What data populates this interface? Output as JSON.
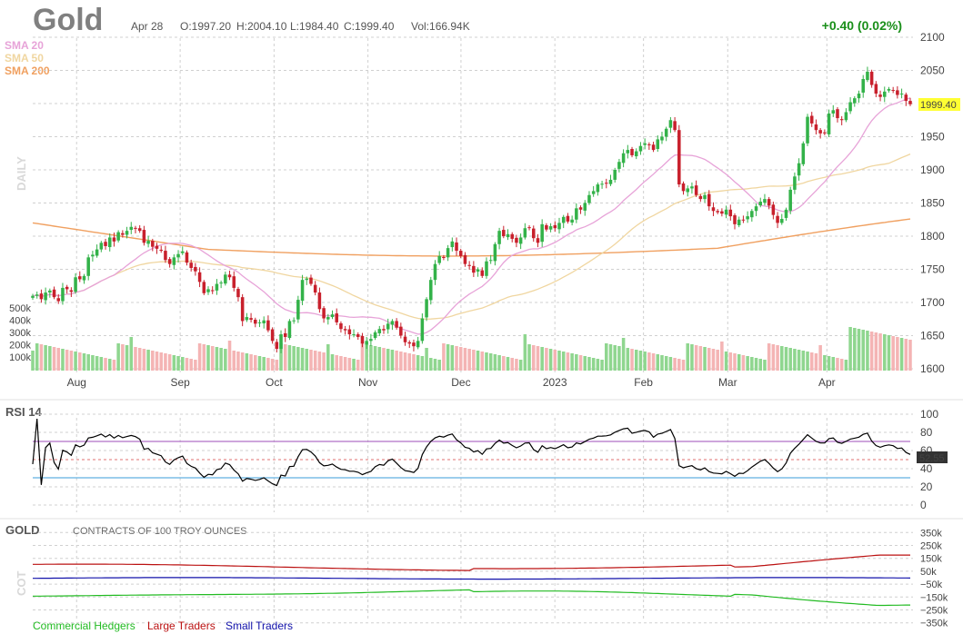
{
  "header": {
    "symbol": "Gold",
    "date": "Apr 28",
    "open": "O:1997.20",
    "high": "H:2004.10",
    "low": "L:1984.40",
    "close": "C:1999.40",
    "volume": "Vol:166.94K",
    "change": "+0.40 (0.02%)",
    "last_price_badge": "1999.40",
    "period_label": "DAILY"
  },
  "sma_legend": [
    {
      "label": "SMA 20",
      "color": "#e7a3d8"
    },
    {
      "label": "SMA 50",
      "color": "#f0d6a0"
    },
    {
      "label": "SMA 200",
      "color": "#f0a060"
    }
  ],
  "colors": {
    "up": "#33b249",
    "down": "#c8202c",
    "vol_up": "#8fd68f",
    "vol_down": "#f4b4b4",
    "badge": "#ffff33",
    "rsi_line": "#000000",
    "rsi_upper": "#b070c8",
    "rsi_lower": "#60b0e0",
    "rsi_mid": "#e07070",
    "commercial": "#22bb22",
    "large": "#bb1111",
    "small": "#1111aa"
  },
  "rsi": {
    "label": "RSI 14",
    "last_value": "52.55",
    "ticks": [
      "0",
      "20",
      "40",
      "60",
      "80",
      "100"
    ]
  },
  "cot": {
    "title": "GOLD",
    "subtitle": "CONTRACTS OF 100 TROY OUNCES",
    "side_label": "COT",
    "ticks": [
      "350k",
      "250k",
      "150k",
      "50k",
      "−50k",
      "−150k",
      "−250k",
      "−350k"
    ],
    "legend": [
      {
        "label": "Commercial Hedgers",
        "color": "#22bb22"
      },
      {
        "label": "Large Traders",
        "color": "#bb1111"
      },
      {
        "label": "Small Traders",
        "color": "#1111aa"
      }
    ]
  },
  "chart_data": {
    "type": "candlestick",
    "x_labels": [
      "Aug",
      "Sep",
      "Oct",
      "Nov",
      "Dec",
      "2023",
      "Feb",
      "Mar",
      "Apr"
    ],
    "price_ticks": [
      "1600",
      "1650",
      "1700",
      "1750",
      "1800",
      "1850",
      "1900",
      "1950",
      "2000",
      "2050",
      "2100"
    ],
    "volume_ticks": [
      "100k",
      "200k",
      "300k",
      "400k",
      "500k"
    ],
    "ylim": [
      1600,
      2100
    ],
    "close_path": [
      1710,
      1712,
      1705,
      1715,
      1718,
      1708,
      1702,
      1722,
      1720,
      1716,
      1738,
      1735,
      1740,
      1768,
      1772,
      1780,
      1790,
      1785,
      1798,
      1792,
      1806,
      1802,
      1808,
      1814,
      1812,
      1808,
      1790,
      1793,
      1784,
      1781,
      1778,
      1764,
      1758,
      1768,
      1773,
      1777,
      1760,
      1752,
      1747,
      1731,
      1714,
      1720,
      1718,
      1728,
      1730,
      1742,
      1738,
      1722,
      1708,
      1672,
      1678,
      1674,
      1668,
      1670,
      1673,
      1658,
      1642,
      1630,
      1652,
      1648,
      1672,
      1673,
      1704,
      1734,
      1736,
      1728,
      1715,
      1690,
      1676,
      1678,
      1682,
      1670,
      1660,
      1658,
      1652,
      1652,
      1648,
      1638,
      1642,
      1645,
      1655,
      1660,
      1658,
      1668,
      1672,
      1662,
      1650,
      1640,
      1638,
      1634,
      1642,
      1676,
      1705,
      1734,
      1758,
      1770,
      1768,
      1782,
      1792,
      1778,
      1770,
      1758,
      1755,
      1745,
      1750,
      1740,
      1762,
      1764,
      1788,
      1808,
      1800,
      1803,
      1796,
      1790,
      1798,
      1812,
      1813,
      1797,
      1790,
      1818,
      1810,
      1815,
      1812,
      1820,
      1829,
      1822,
      1825,
      1842,
      1840,
      1850,
      1862,
      1868,
      1878,
      1879,
      1880,
      1885,
      1900,
      1912,
      1925,
      1930,
      1922,
      1928,
      1936,
      1940,
      1938,
      1930,
      1946,
      1950,
      1962,
      1975,
      1960,
      1878,
      1868,
      1872,
      1875,
      1862,
      1856,
      1862,
      1845,
      1838,
      1836,
      1834,
      1840,
      1830,
      1818,
      1825,
      1824,
      1830,
      1838,
      1845,
      1852,
      1856,
      1846,
      1832,
      1820,
      1826,
      1840,
      1870,
      1890,
      1910,
      1940,
      1980,
      1970,
      1960,
      1955,
      1955,
      1985,
      1990,
      1978,
      1975,
      1987,
      2002,
      2008,
      2015,
      2037,
      2048,
      2028,
      2015,
      2010,
      2018,
      2022,
      2020,
      2013,
      2015,
      2004,
      1999
    ]
  }
}
